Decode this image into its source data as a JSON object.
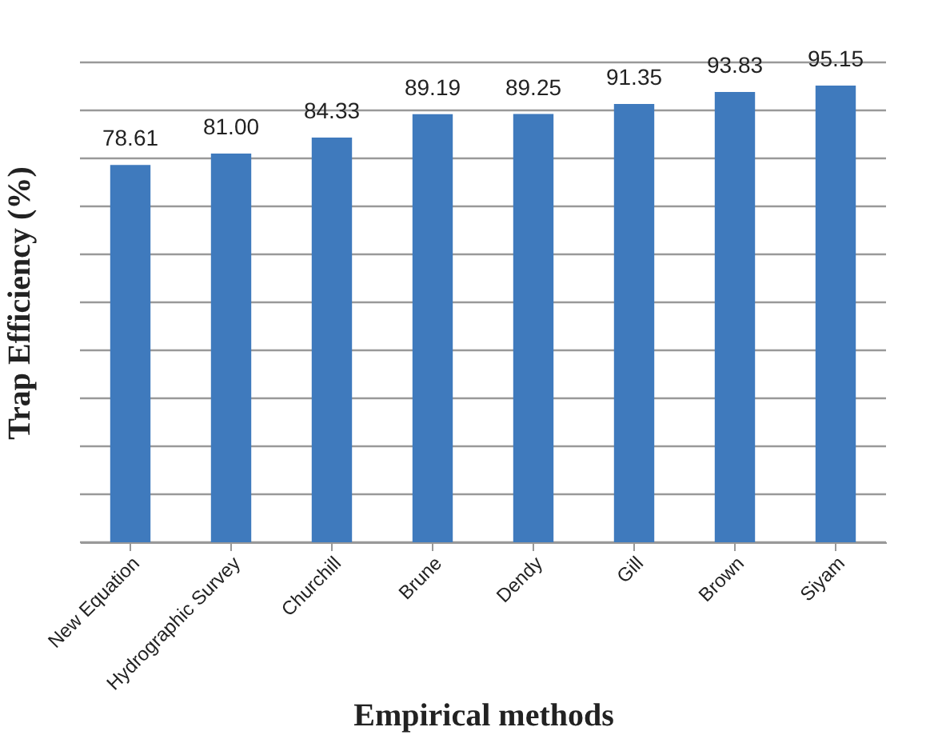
{
  "chart_data": {
    "type": "bar",
    "xlabel": "Empirical methods",
    "ylabel": "Trap Efficiency (%)",
    "categories": [
      "New Equation",
      "Hydrographic Survey",
      "Churchill",
      "Brune",
      "Dendy",
      "Gill",
      "Brown",
      "Siyam"
    ],
    "values": [
      78.61,
      81.0,
      84.33,
      89.19,
      89.25,
      91.35,
      93.83,
      95.15
    ],
    "value_labels": [
      "78.61",
      "81.00",
      "84.33",
      "89.19",
      "89.25",
      "91.35",
      "93.83",
      "95.15"
    ],
    "color": "#3f7abd",
    "ylim": [
      0,
      100
    ],
    "yticks": [
      {
        "value": 0,
        "label": null
      },
      {
        "value": 10,
        "label": null
      },
      {
        "value": 20,
        "label": null
      },
      {
        "value": 30,
        "label": null
      },
      {
        "value": 40,
        "label": null
      },
      {
        "value": 50,
        "label": null
      },
      {
        "value": 60,
        "label": null
      },
      {
        "value": 70,
        "label": null
      },
      {
        "value": 80,
        "label": null
      },
      {
        "value": 90,
        "label": null
      },
      {
        "value": 100,
        "label": null
      }
    ],
    "grid": "y",
    "tick_labels": "x"
  }
}
